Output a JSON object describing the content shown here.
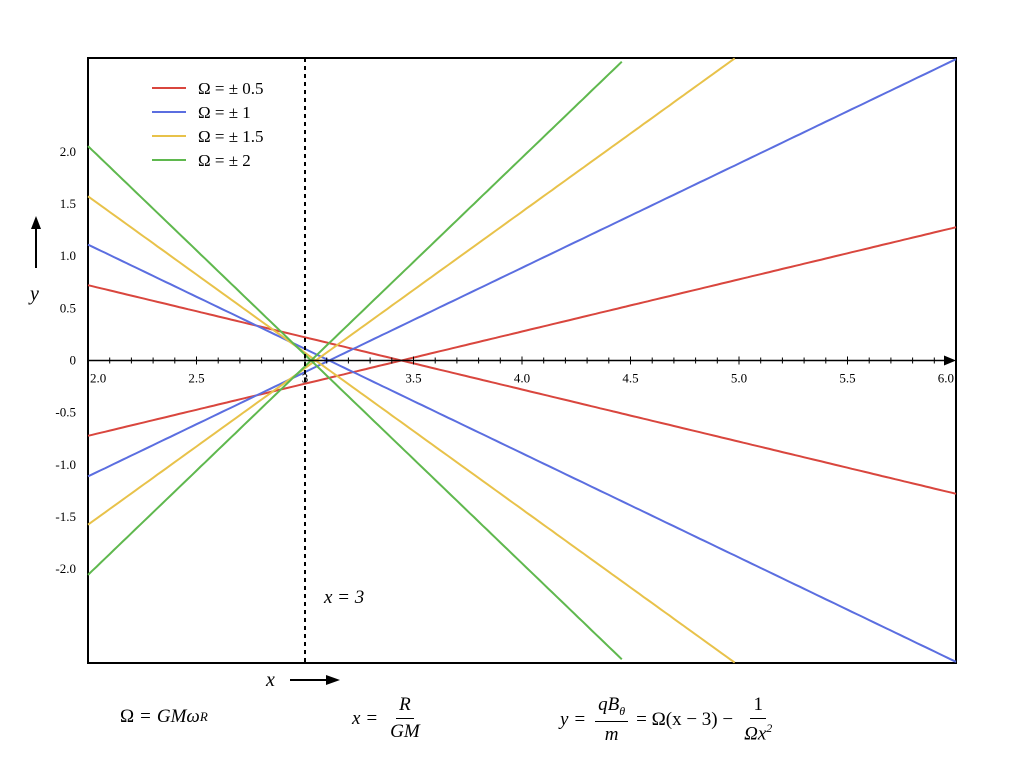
{
  "chart_data": {
    "type": "line",
    "title": "",
    "xlabel": "x",
    "ylabel": "y",
    "xlim": [
      2.0,
      6.0
    ],
    "ylim": [
      -2.9,
      2.9
    ],
    "x_ticks": [
      2.0,
      2.5,
      3.0,
      3.5,
      4.0,
      4.5,
      5.0,
      5.5,
      6.0
    ],
    "x_tick_labels": [
      "2.0",
      "2.5",
      "3",
      "3.5",
      "4.0",
      "4.5",
      "5.0",
      "5.5",
      "6.0"
    ],
    "y_ticks": [
      2.0,
      1.5,
      1.0,
      0.5,
      0,
      -0.5,
      -1.0,
      -1.5,
      -2.0
    ],
    "y_tick_labels": [
      "2.0",
      "1.5",
      "1.0",
      "0.5",
      "0",
      "-0.5",
      "-1.0",
      "-1.5",
      "-2.0"
    ],
    "series": [
      {
        "name": "Ω = ± 0.5",
        "color": "#d9463e",
        "omega": 0.5,
        "x_start": 2.0,
        "x_end": 6.0
      },
      {
        "name": "Ω = ± 1",
        "color": "#5b6ee0",
        "omega": 1.0,
        "x_start": 2.0,
        "x_end": 6.0
      },
      {
        "name": "Ω = ± 1.5",
        "color": "#e8c24a",
        "omega": 1.5,
        "x_start": 2.0,
        "x_end": 5.0
      },
      {
        "name": "Ω = ± 2",
        "color": "#5fb84e",
        "omega": 2.0,
        "x_start": 2.0,
        "x_end": 4.5
      }
    ],
    "vertical_line": {
      "x": 3,
      "label": "x = 3",
      "style": "dotted"
    },
    "legend_location": "top-left"
  },
  "axis_labels": {
    "x": "x",
    "y": "y"
  },
  "equations": {
    "omega_def": {
      "lhs": "Ω",
      "rhs": "GMω",
      "sub": "R"
    },
    "x_def": {
      "lhs": "x",
      "num": "R",
      "den": "GM"
    },
    "y_def": {
      "lhs": "y",
      "num": "qB",
      "num_sub": "θ",
      "den": "m",
      "mid": "= Ω(x − 3) −",
      "num2": "1",
      "den2": "Ωx",
      "den2_sup": "2"
    }
  }
}
